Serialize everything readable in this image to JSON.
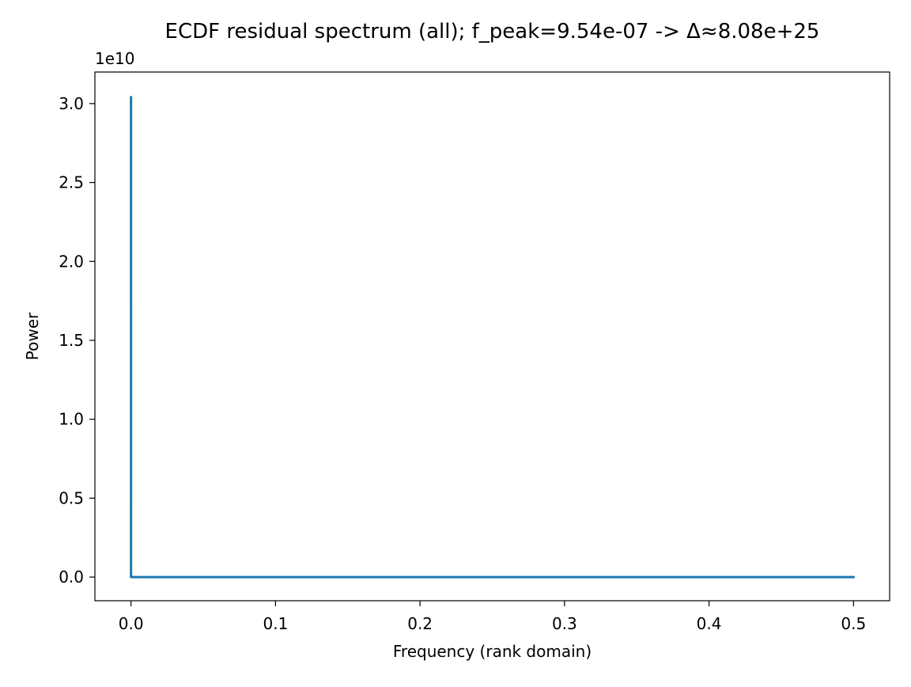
{
  "chart_data": {
    "type": "line",
    "title": "ECDF residual spectrum (all); f_peak=9.54e-07 -> Δ≈8.08e+25",
    "xlabel": "Frequency (rank domain)",
    "ylabel": "Power",
    "y_offset_label": "1e10",
    "y_scale": 10000000000,
    "xlim": [
      -0.025,
      0.525
    ],
    "ylim": [
      -1500000000,
      32000000000
    ],
    "x_ticks": [
      0.0,
      0.1,
      0.2,
      0.3,
      0.4,
      0.5
    ],
    "x_tick_labels": [
      "0.0",
      "0.1",
      "0.2",
      "0.3",
      "0.4",
      "0.5"
    ],
    "y_ticks": [
      0,
      5000000000,
      10000000000,
      15000000000,
      20000000000,
      25000000000,
      30000000000
    ],
    "y_tick_labels": [
      "0.0",
      "0.5",
      "1.0",
      "1.5",
      "2.0",
      "2.5",
      "3.0"
    ],
    "grid": false,
    "legend": false,
    "series": [
      {
        "color": "#1f77b4",
        "x": [
          0.0,
          9.54e-07,
          1e-05,
          0.5
        ],
        "values": [
          30400000000,
          30400000000,
          0,
          0
        ]
      }
    ]
  }
}
